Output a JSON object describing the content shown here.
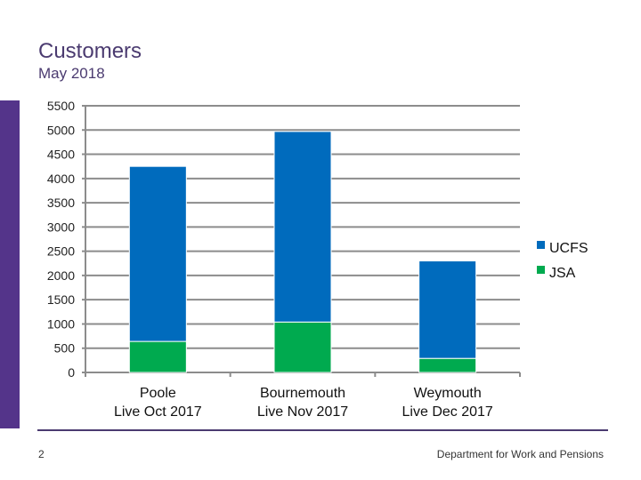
{
  "slide": {
    "title": "Customers",
    "subtitle": "May 2018",
    "page_number": "2",
    "footer": "Department for Work and Pensions",
    "accent_color": "#54348a"
  },
  "chart_data": {
    "type": "bar",
    "stacked": true,
    "categories": [
      [
        "Poole",
        "Live Oct 2017"
      ],
      [
        "Bournemouth",
        "Live Nov 2017"
      ],
      [
        "Weymouth",
        "Live Dec 2017"
      ]
    ],
    "series": [
      {
        "name": "JSA",
        "color": "#00aa4f",
        "values": [
          640,
          1040,
          290
        ]
      },
      {
        "name": "UCFS",
        "color": "#006bbd",
        "values": [
          3610,
          3930,
          2010
        ]
      }
    ],
    "ylim": [
      0,
      5500
    ],
    "yticks": [
      0,
      500,
      1000,
      1500,
      2000,
      2500,
      3000,
      3500,
      4000,
      4500,
      5000,
      5500
    ],
    "grid": true,
    "legend": "right",
    "legend_order": [
      "UCFS",
      "JSA"
    ]
  }
}
